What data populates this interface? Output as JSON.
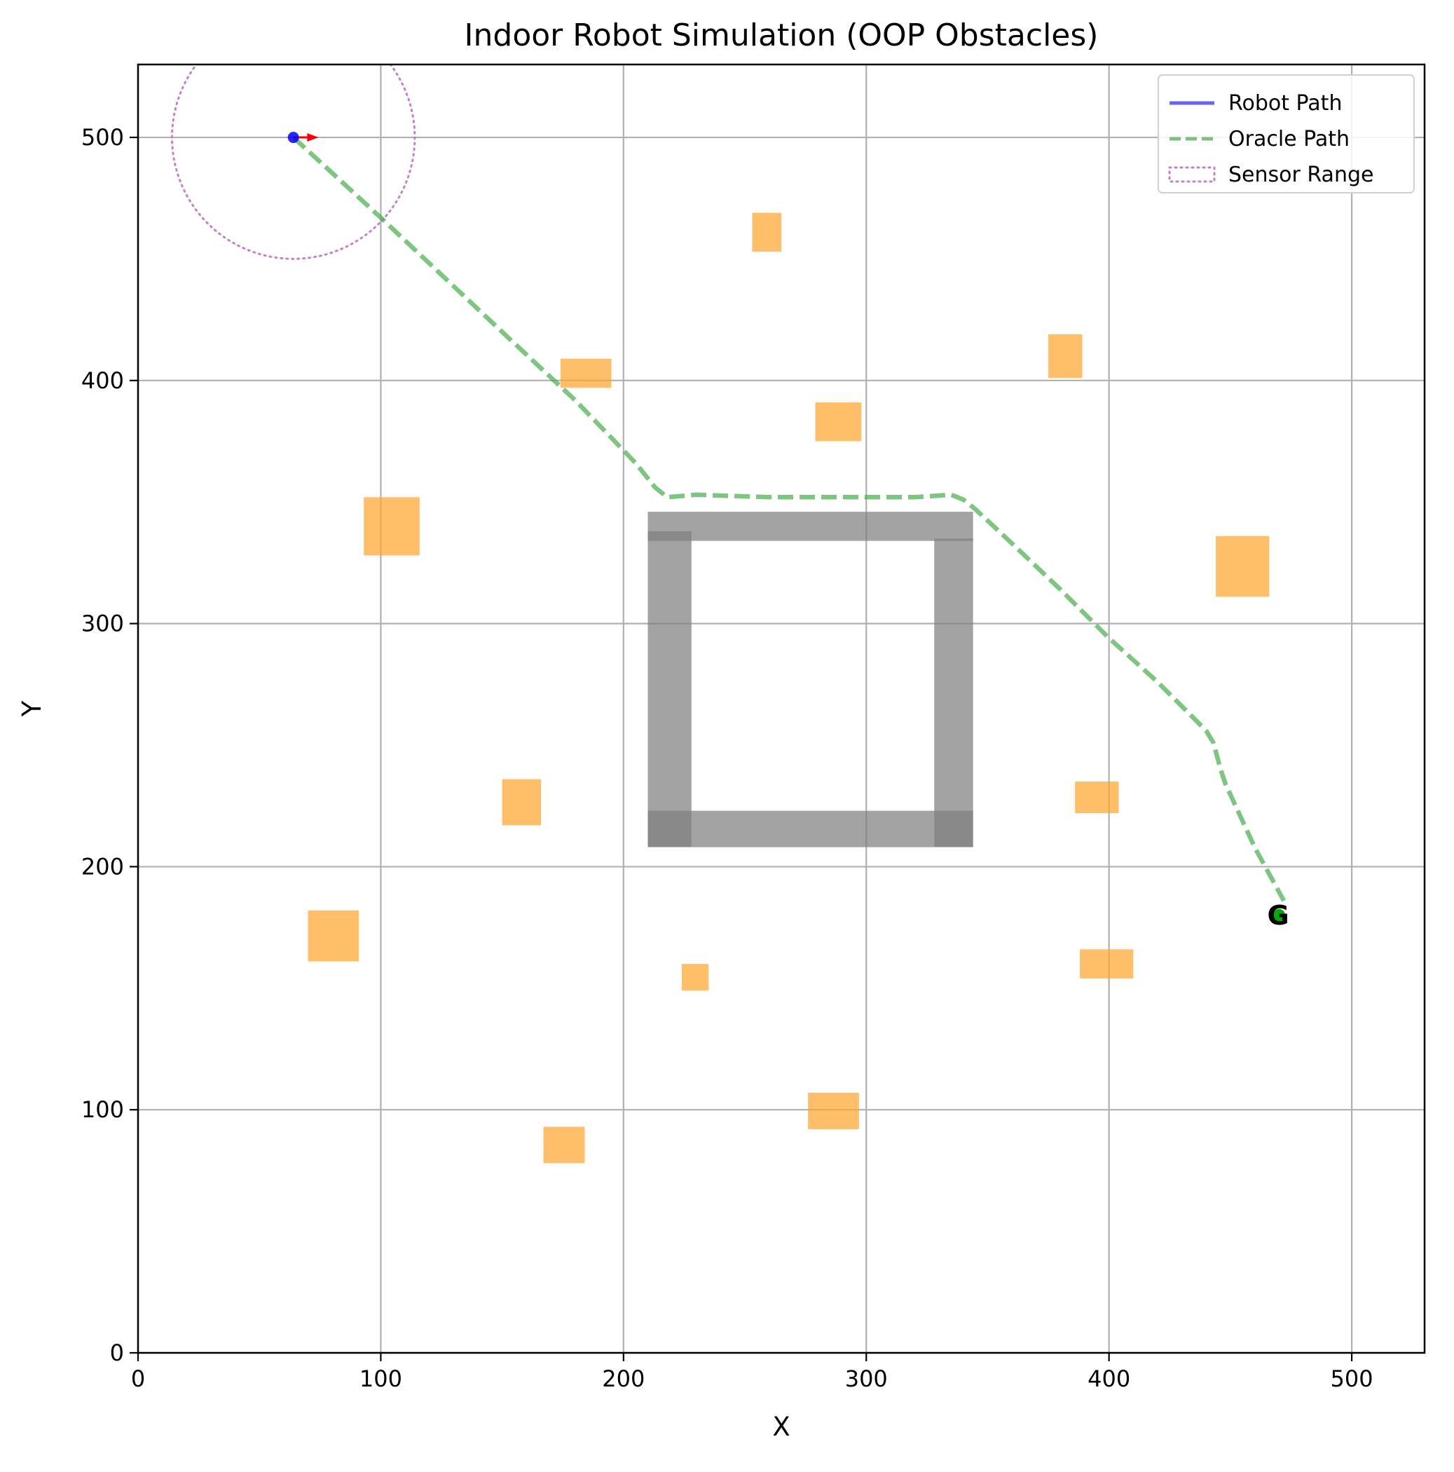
{
  "chart_data": {
    "type": "scatter",
    "title": "Indoor Robot Simulation (OOP Obstacles)",
    "xlabel": "X",
    "ylabel": "Y",
    "xlim": [
      0,
      530
    ],
    "ylim": [
      0,
      530
    ],
    "xticks": [
      "0",
      "100",
      "200",
      "300",
      "400",
      "500"
    ],
    "yticks": [
      "0",
      "100",
      "200",
      "300",
      "400",
      "500"
    ],
    "xtick_values": [
      0,
      100,
      200,
      300,
      400,
      500
    ],
    "ytick_values": [
      0,
      100,
      200,
      300,
      400,
      500
    ],
    "grid": true,
    "legend_position": "top-right",
    "legend": [
      {
        "label": "Robot Path",
        "style": "solid",
        "color": "#6666ee"
      },
      {
        "label": "Oracle Path",
        "style": "dashed",
        "color": "#7fbf7f"
      },
      {
        "label": "Sensor Range",
        "style": "dotted",
        "color": "#c77fc7"
      }
    ],
    "robot": {
      "x": 64,
      "y": 500,
      "color": "#0000ff"
    },
    "robot_heading": {
      "x1": 64,
      "y1": 500,
      "x2": 72,
      "y2": 500,
      "color": "#ff0000"
    },
    "sensor_range": {
      "cx": 64,
      "cy": 500,
      "r": 50,
      "color": "#c77fc7"
    },
    "goal": {
      "x": 470,
      "y": 180,
      "label": "G",
      "color": "#00aa00"
    },
    "oracle_path": [
      [
        64,
        500
      ],
      [
        100,
        467
      ],
      [
        150,
        420
      ],
      [
        180,
        392
      ],
      [
        205,
        366
      ],
      [
        213,
        356
      ],
      [
        218,
        352
      ],
      [
        230,
        353
      ],
      [
        260,
        352
      ],
      [
        290,
        352
      ],
      [
        320,
        352
      ],
      [
        335,
        353
      ],
      [
        340,
        351
      ],
      [
        345,
        347
      ],
      [
        360,
        333
      ],
      [
        380,
        314
      ],
      [
        400,
        294
      ],
      [
        420,
        276
      ],
      [
        440,
        256
      ],
      [
        443,
        251
      ],
      [
        446,
        240
      ],
      [
        448,
        234
      ],
      [
        460,
        208
      ],
      [
        472,
        186
      ]
    ],
    "walls": [
      {
        "x": 210,
        "y": 334,
        "w": 134,
        "h": 12
      },
      {
        "x": 210,
        "y": 208,
        "w": 134,
        "h": 15
      },
      {
        "x": 210,
        "y": 208,
        "w": 18,
        "h": 130
      },
      {
        "x": 328,
        "y": 208,
        "w": 16,
        "h": 127
      }
    ],
    "obstacles": [
      {
        "x": 253,
        "y": 453,
        "w": 12,
        "h": 16
      },
      {
        "x": 174,
        "y": 397,
        "w": 21,
        "h": 12
      },
      {
        "x": 375,
        "y": 401,
        "w": 14,
        "h": 18
      },
      {
        "x": 279,
        "y": 375,
        "w": 19,
        "h": 16
      },
      {
        "x": 93,
        "y": 328,
        "w": 23,
        "h": 24
      },
      {
        "x": 444,
        "y": 311,
        "w": 22,
        "h": 25
      },
      {
        "x": 150,
        "y": 217,
        "w": 16,
        "h": 19
      },
      {
        "x": 386,
        "y": 222,
        "w": 18,
        "h": 13
      },
      {
        "x": 70,
        "y": 161,
        "w": 21,
        "h": 21
      },
      {
        "x": 388,
        "y": 154,
        "w": 22,
        "h": 12
      },
      {
        "x": 224,
        "y": 149,
        "w": 11,
        "h": 11
      },
      {
        "x": 276,
        "y": 92,
        "w": 21,
        "h": 15
      },
      {
        "x": 167,
        "y": 78,
        "w": 17,
        "h": 15
      }
    ],
    "colors": {
      "obstacle": "#ffa630",
      "wall": "#808080",
      "grid": "#b0b0b0"
    }
  }
}
